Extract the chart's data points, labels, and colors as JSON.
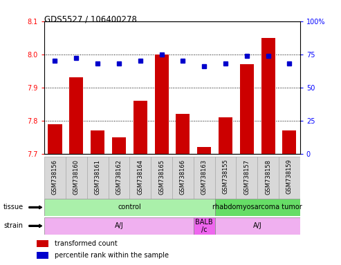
{
  "title": "GDS5527 / 106400278",
  "samples": [
    "GSM738156",
    "GSM738160",
    "GSM738161",
    "GSM738162",
    "GSM738164",
    "GSM738165",
    "GSM738166",
    "GSM738163",
    "GSM738155",
    "GSM738157",
    "GSM738158",
    "GSM738159"
  ],
  "red_values": [
    7.79,
    7.93,
    7.77,
    7.75,
    7.86,
    8.0,
    7.82,
    7.72,
    7.81,
    7.97,
    8.05,
    7.77
  ],
  "blue_values": [
    70,
    72,
    68,
    68,
    70,
    75,
    70,
    66,
    68,
    74,
    74,
    68
  ],
  "ylim_left": [
    7.7,
    8.1
  ],
  "ylim_right": [
    0,
    100
  ],
  "yticks_left": [
    7.7,
    7.8,
    7.9,
    8.0,
    8.1
  ],
  "yticks_right": [
    0,
    25,
    50,
    75,
    100
  ],
  "hgrid_lines": [
    7.8,
    7.9,
    8.0
  ],
  "tissue_labels": [
    {
      "text": "control",
      "start": 0,
      "end": 8,
      "color": "#aaf0aa"
    },
    {
      "text": "rhabdomyosarcoma tumor",
      "start": 8,
      "end": 12,
      "color": "#66dd66"
    }
  ],
  "strain_labels": [
    {
      "text": "A/J",
      "start": 0,
      "end": 7,
      "color": "#f0b0f0"
    },
    {
      "text": "BALB\n/c",
      "start": 7,
      "end": 8,
      "color": "#ee66ee"
    },
    {
      "text": "A/J",
      "start": 8,
      "end": 12,
      "color": "#f0b0f0"
    }
  ],
  "tissue_row_label": "tissue",
  "strain_row_label": "strain",
  "legend_items": [
    {
      "color": "#cc0000",
      "label": "transformed count"
    },
    {
      "color": "#0000cc",
      "label": "percentile rank within the sample"
    }
  ],
  "bar_color": "#cc0000",
  "dot_color": "#0000cc",
  "base_value": 7.7,
  "sample_box_color": "#d8d8d8",
  "sample_box_edgecolor": "#aaaaaa",
  "fig_width": 4.93,
  "fig_height": 3.84,
  "dpi": 100
}
